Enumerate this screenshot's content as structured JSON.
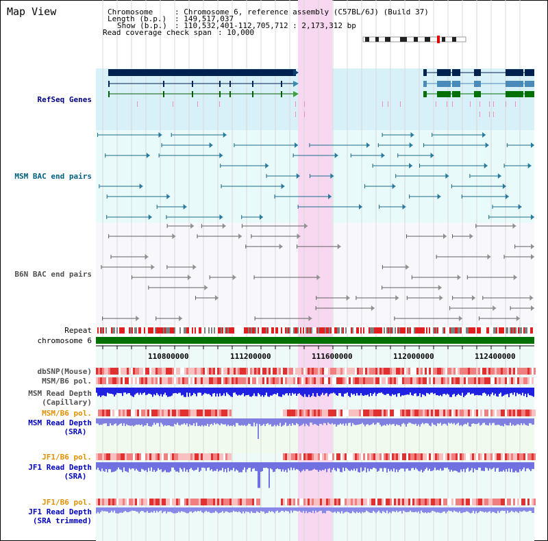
{
  "title": "Map View",
  "info": {
    "chromosome_label": "Chromosome",
    "chromosome_value": ": Chromosome 6, reference assembly (C57BL/6J) (Build 37)",
    "length_label": "Length (b.p.)",
    "length_value": ": 149,517,037",
    "show_label": "Show (b.p.)",
    "show_value": ": 110,532,401-112,705,712 : 2,173,312 bp",
    "coverage_label": "Read coverage check span",
    "coverage_value": ": 10,000"
  },
  "tracks": {
    "refseq": "RefSeq Genes",
    "msm_bac": "MSM BAC end pairs",
    "b6n_bac": "B6N BAC end pairs",
    "repeat": "Repeat",
    "chromosome": "chromosome 6",
    "dbsnp": "dbSNP(Mouse)",
    "msm_b6_pol": "MSM/B6 pol.",
    "msm_cap_1": "MSM Read Depth",
    "msm_cap_2": "(Capillary)",
    "msm_b6_pol_2": "MSM/B6 pol.",
    "msm_sra_1": "MSM Read Depth",
    "msm_sra_2": "(SRA)",
    "jf1_b6_pol": "JF1/B6 pol.",
    "jf1_sra_1": "JF1 Read Depth",
    "jf1_sra_2": "(SRA)",
    "jf1_b6_pol_2": "JF1/B6 pol.",
    "jf1_trim_1": "JF1 Read Depth",
    "jf1_trim_2": "(SRA trimmed)"
  },
  "axis": {
    "ticks": [
      "110800000",
      "111200000",
      "111600000",
      "112000000",
      "112400000"
    ]
  },
  "colors": {
    "refseq_label": "#000080",
    "msm_label": "#006080",
    "b6n_label": "#505050",
    "pol_orange": "#e09000",
    "depth_blue": "#0000c0",
    "chromosome_green": "#007000",
    "highlight": "#f8d8f0"
  }
}
